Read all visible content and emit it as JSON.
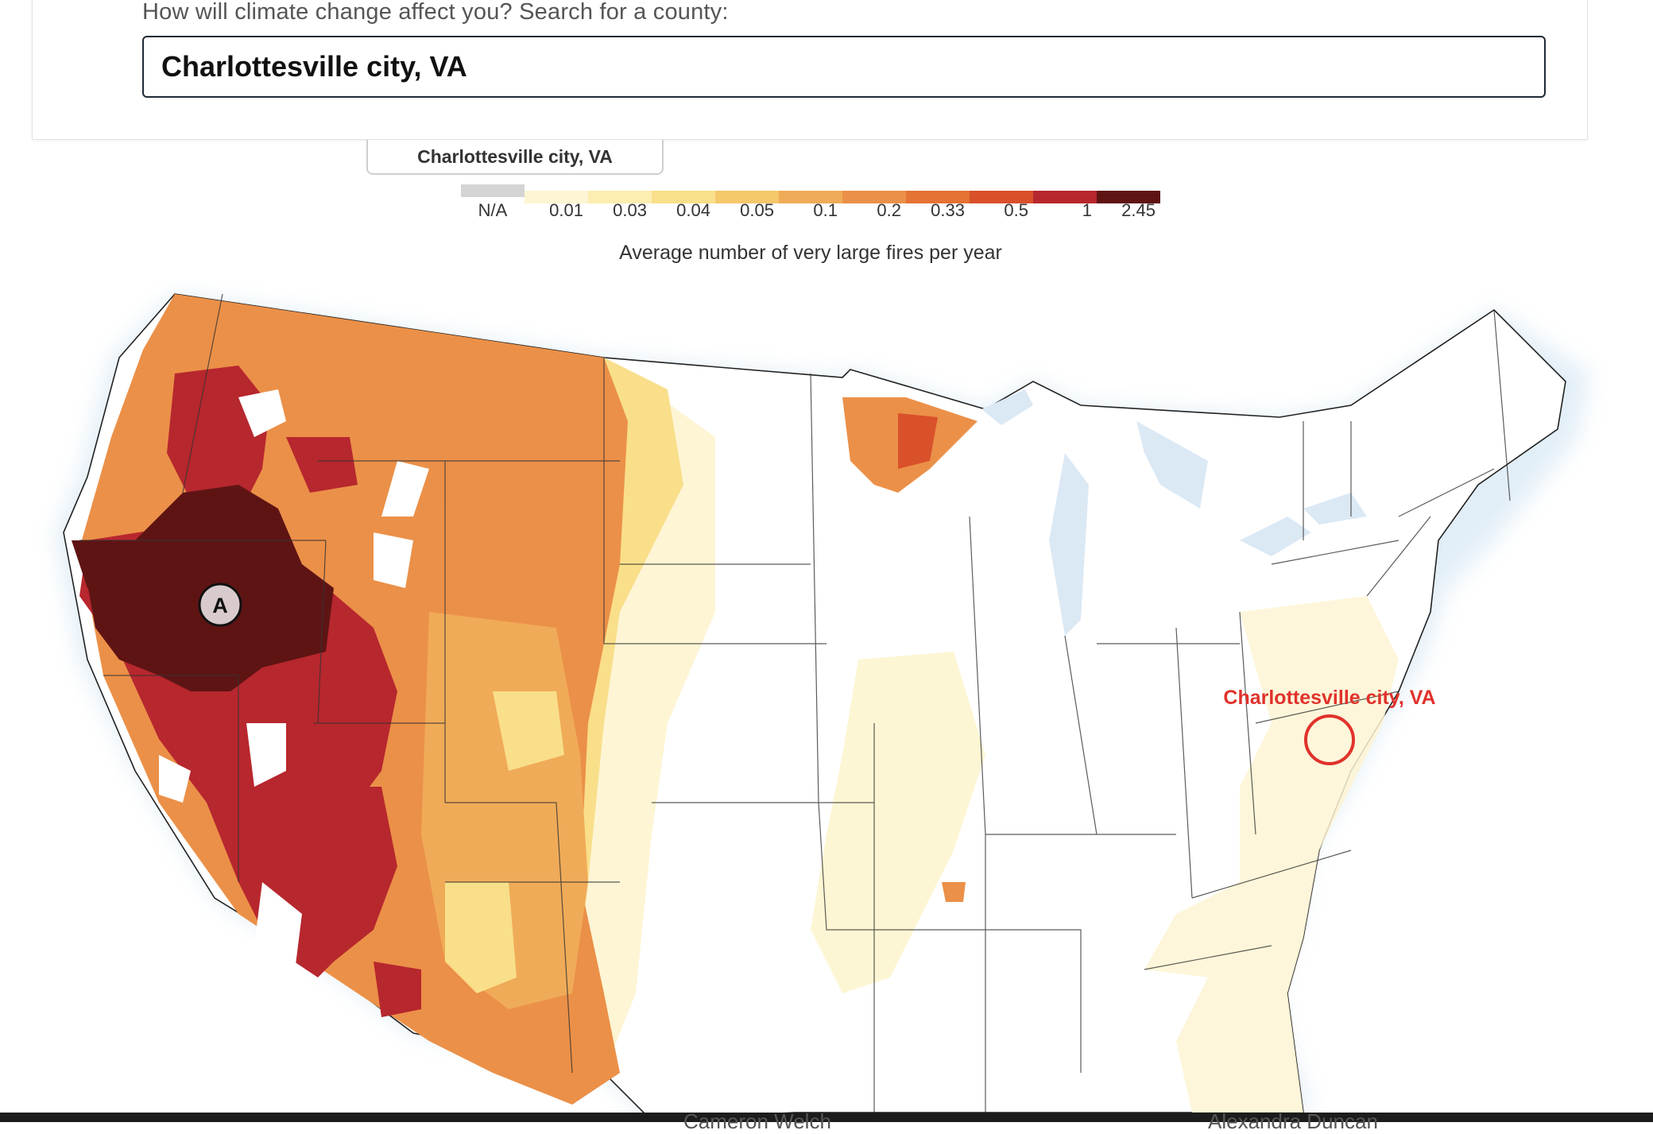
{
  "search": {
    "prompt": "How will climate change affect you? Search for a county:",
    "value": "Charlottesville city, VA"
  },
  "county_tab": {
    "label": "Charlottesville city, VA"
  },
  "legend": {
    "title": "Average number of very large fires per year",
    "na_label": "N/A",
    "na_color": "#d4d4d4",
    "colors": [
      "#fdf5d4",
      "#fbeeb0",
      "#f9df8a",
      "#f5c86a",
      "#f0ab58",
      "#eb9048",
      "#e47334",
      "#d9512a",
      "#b7272e",
      "#5f1414"
    ],
    "ticks": [
      "0.01",
      "0.03",
      "0.04",
      "0.05",
      "0.1",
      "0.2",
      "0.33",
      "0.5",
      "1",
      "2.45"
    ]
  },
  "map": {
    "marker_label": "A",
    "highlight_label": "Charlottesville city, VA",
    "highlight_color": "#e0322b"
  },
  "footer": {
    "peek_left": "Cameron Welch",
    "peek_right": "Alexandra Duncan"
  }
}
